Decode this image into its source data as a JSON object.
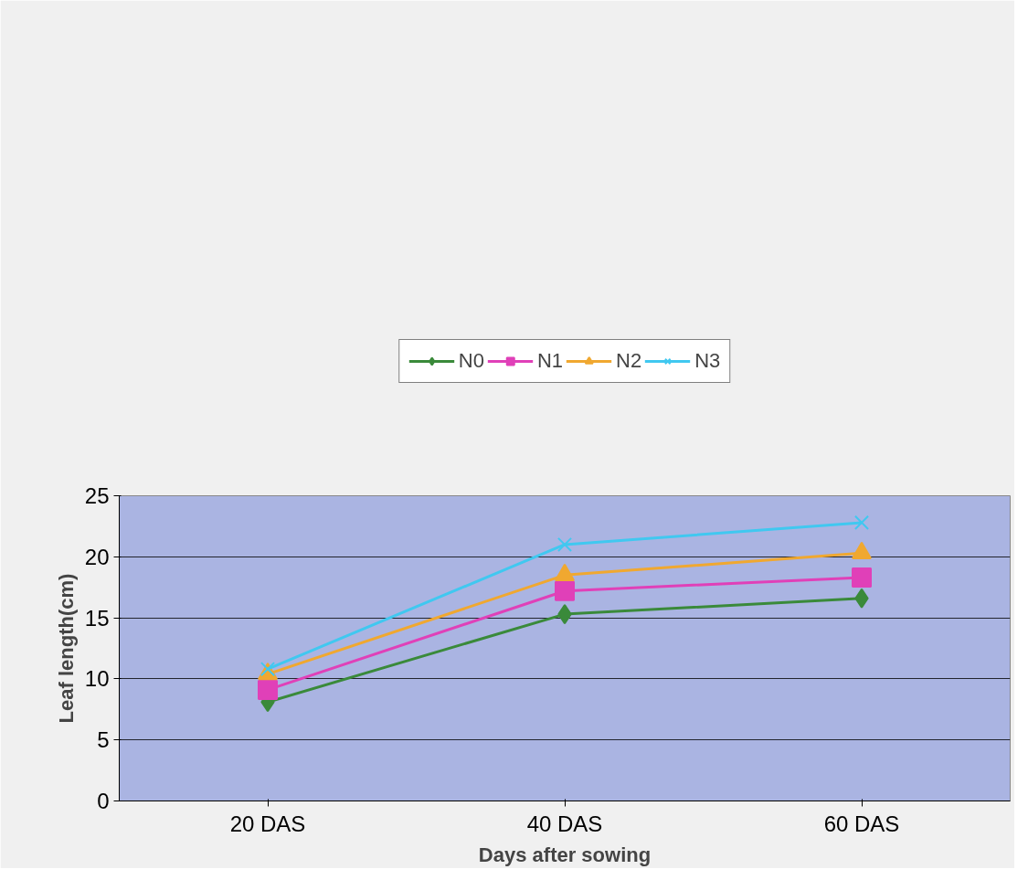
{
  "chart_data": {
    "type": "line",
    "xlabel": "Days after sowing",
    "ylabel": "Leaf length(cm)",
    "categories": [
      "20 DAS",
      "40 DAS",
      "60 DAS"
    ],
    "series": [
      {
        "name": "N0",
        "color": "#3a8a3a",
        "marker": "diamond",
        "values": [
          8.1,
          15.3,
          16.6
        ]
      },
      {
        "name": "N1",
        "color": "#e040b8",
        "marker": "square",
        "values": [
          9.1,
          17.2,
          18.3
        ]
      },
      {
        "name": "N2",
        "color": "#f0a830",
        "marker": "triangle",
        "values": [
          10.4,
          18.5,
          20.3
        ]
      },
      {
        "name": "N3",
        "color": "#40c8f0",
        "marker": "cross",
        "values": [
          10.8,
          21.0,
          22.8
        ]
      }
    ],
    "ylim": [
      0,
      25
    ],
    "yticks": [
      0,
      5,
      10,
      15,
      20,
      25
    ],
    "grid": "y",
    "legend": "top"
  }
}
